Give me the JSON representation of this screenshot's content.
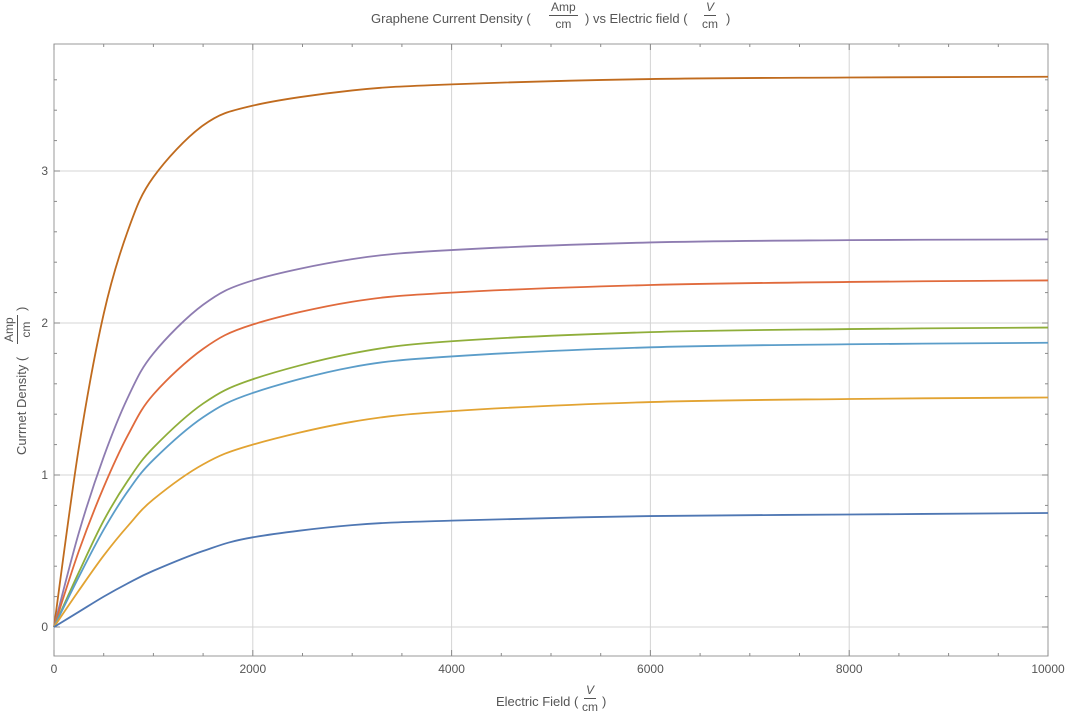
{
  "chart_data": {
    "type": "line",
    "title": {
      "prefix": "Graphene Current Density (",
      "frac1_num": "Amp",
      "frac1_den": "cm",
      "middle": ") vs Electric field (",
      "frac2_num": "V",
      "frac2_den": "cm",
      "suffix": ")"
    },
    "xlabel": {
      "prefix": "Electric Field (",
      "frac_num": "V",
      "frac_den": "cm",
      "suffix": ")"
    },
    "ylabel": {
      "prefix": "Currnet Density (",
      "frac_num": "Amp",
      "frac_den": "cm",
      "suffix": ")"
    },
    "xlim": [
      0,
      10000
    ],
    "ylim": [
      -0.2,
      3.85
    ],
    "x_ticks": [
      0,
      2000,
      4000,
      6000,
      8000,
      10000
    ],
    "y_ticks": [
      0,
      1,
      2,
      3
    ],
    "grid": true,
    "series": [
      {
        "color": "#c06b1e",
        "saturation": 3.62,
        "x": [
          0,
          250,
          500,
          750,
          1000,
          1500,
          2000,
          3000,
          4000,
          6000,
          8000,
          10000
        ],
        "y": [
          0,
          1.18,
          2.06,
          2.62,
          2.96,
          3.3,
          3.43,
          3.53,
          3.57,
          3.605,
          3.615,
          3.62
        ]
      },
      {
        "color": "#8e7cb1",
        "saturation": 2.55,
        "x": [
          0,
          250,
          500,
          750,
          1000,
          1500,
          2000,
          3000,
          4000,
          6000,
          8000,
          10000
        ],
        "y": [
          0,
          0.62,
          1.12,
          1.52,
          1.8,
          2.12,
          2.28,
          2.42,
          2.48,
          2.53,
          2.545,
          2.55
        ]
      },
      {
        "color": "#e06a3c",
        "saturation": 2.28,
        "x": [
          0,
          250,
          500,
          750,
          1000,
          1500,
          2000,
          3000,
          4000,
          6000,
          8000,
          10000
        ],
        "y": [
          0,
          0.5,
          0.92,
          1.27,
          1.53,
          1.83,
          1.99,
          2.14,
          2.2,
          2.25,
          2.27,
          2.28
        ]
      },
      {
        "color": "#8fae3a",
        "saturation": 1.97,
        "x": [
          0,
          250,
          500,
          750,
          1000,
          1500,
          2000,
          3000,
          4000,
          6000,
          8000,
          10000
        ],
        "y": [
          0,
          0.36,
          0.7,
          0.97,
          1.18,
          1.47,
          1.63,
          1.8,
          1.88,
          1.94,
          1.96,
          1.97
        ]
      },
      {
        "color": "#5b9dc9",
        "saturation": 1.87,
        "x": [
          0,
          250,
          500,
          750,
          1000,
          1500,
          2000,
          3000,
          4000,
          6000,
          8000,
          10000
        ],
        "y": [
          0,
          0.33,
          0.64,
          0.9,
          1.1,
          1.38,
          1.54,
          1.71,
          1.78,
          1.84,
          1.86,
          1.87
        ]
      },
      {
        "color": "#e2a332",
        "saturation": 1.51,
        "x": [
          0,
          250,
          500,
          750,
          1000,
          1500,
          2000,
          3000,
          4000,
          6000,
          8000,
          10000
        ],
        "y": [
          0,
          0.24,
          0.47,
          0.67,
          0.84,
          1.07,
          1.2,
          1.35,
          1.42,
          1.48,
          1.5,
          1.51
        ]
      },
      {
        "color": "#4f77b3",
        "saturation": 0.75,
        "x": [
          0,
          250,
          500,
          750,
          1000,
          1500,
          2000,
          3000,
          4000,
          6000,
          8000,
          10000
        ],
        "y": [
          0,
          0.1,
          0.2,
          0.29,
          0.37,
          0.5,
          0.59,
          0.67,
          0.7,
          0.73,
          0.74,
          0.75
        ]
      }
    ]
  }
}
